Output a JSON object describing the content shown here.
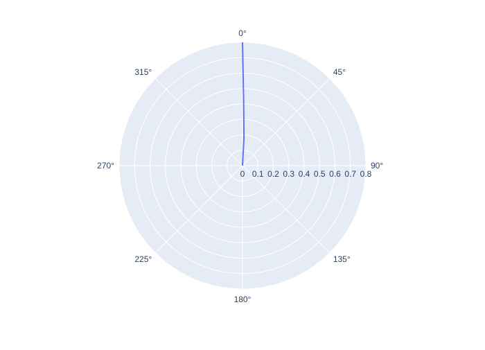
{
  "chart_data": {
    "type": "polar-line",
    "angular_unit": "degrees",
    "angular_direction": "clockwise",
    "angular_zero": "top",
    "angular_ticks": [
      0,
      45,
      90,
      135,
      180,
      225,
      270,
      315
    ],
    "angular_tick_labels": [
      "0°",
      "45°",
      "90°",
      "135°",
      "180°",
      "225°",
      "270°",
      "315°"
    ],
    "radial_range": [
      0,
      0.8
    ],
    "radial_ticks": [
      0,
      0.1,
      0.2,
      0.3,
      0.4,
      0.5,
      0.6,
      0.7,
      0.8
    ],
    "radial_tick_labels": [
      "0",
      "0.1",
      "0.2",
      "0.3",
      "0.4",
      "0.5",
      "0.6",
      "0.7",
      "0.8"
    ],
    "grid": true,
    "legend": false,
    "series": [
      {
        "line_color": "#636efa",
        "theta": [
          0,
          3,
          1,
          0
        ],
        "r": [
          0,
          0.18,
          0.42,
          0.8
        ]
      }
    ]
  },
  "colors": {
    "plot_background": "#e5ecf6",
    "grid": "#ffffff",
    "text": "#2a3f5f"
  }
}
